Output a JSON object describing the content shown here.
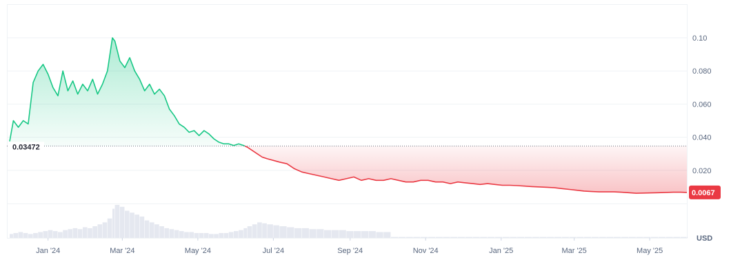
{
  "chart_data": {
    "type": "area",
    "unit_label": "USD",
    "ylim": [
      0,
      0.11
    ],
    "y_ticks": [
      "0.020",
      "0.040",
      "0.060",
      "0.080",
      "0.10"
    ],
    "x_ticks": [
      "Jan '24",
      "Mar '24",
      "May '24",
      "Jul '24",
      "Sep '24",
      "Nov '24",
      "Jan '25",
      "Mar '25",
      "May '25"
    ],
    "reference_value": 0.03472,
    "reference_label": "0.03472",
    "current_value": 0.0067,
    "current_label": "0.0067",
    "colors": {
      "up": "#16c784",
      "down": "#ea3943"
    },
    "series": [
      {
        "x": [
          "2023-12-01",
          "2023-12-04",
          "2023-12-08",
          "2023-12-12",
          "2023-12-16",
          "2023-12-20",
          "2023-12-24",
          "2023-12-28",
          "2024-01-01",
          "2024-01-05",
          "2024-01-09",
          "2024-01-13",
          "2024-01-17",
          "2024-01-21",
          "2024-01-25",
          "2024-01-29",
          "2024-02-02",
          "2024-02-06",
          "2024-02-10",
          "2024-02-14",
          "2024-02-18",
          "2024-02-22",
          "2024-02-24",
          "2024-02-28",
          "2024-03-03",
          "2024-03-07",
          "2024-03-11",
          "2024-03-15",
          "2024-03-19",
          "2024-03-23",
          "2024-03-27",
          "2024-03-31",
          "2024-04-04",
          "2024-04-08",
          "2024-04-12",
          "2024-04-16",
          "2024-04-20",
          "2024-04-24",
          "2024-04-28",
          "2024-05-02",
          "2024-05-06",
          "2024-05-10",
          "2024-05-14",
          "2024-05-18",
          "2024-05-22",
          "2024-05-26",
          "2024-05-30",
          "2024-06-03",
          "2024-06-07",
          "2024-06-10",
          "2024-06-14",
          "2024-06-18",
          "2024-06-22",
          "2024-06-26",
          "2024-07-01",
          "2024-07-06",
          "2024-07-12",
          "2024-07-18",
          "2024-07-24",
          "2024-07-30",
          "2024-08-05",
          "2024-08-11",
          "2024-08-17",
          "2024-08-23",
          "2024-08-29",
          "2024-09-04",
          "2024-09-10",
          "2024-09-16",
          "2024-09-22",
          "2024-09-28",
          "2024-10-04",
          "2024-10-10",
          "2024-10-16",
          "2024-10-22",
          "2024-10-28",
          "2024-11-03",
          "2024-11-09",
          "2024-11-15",
          "2024-11-21",
          "2024-11-27",
          "2024-12-03",
          "2024-12-09",
          "2024-12-15",
          "2024-12-21",
          "2024-12-27",
          "2025-01-02",
          "2025-01-08",
          "2025-01-14",
          "2025-01-20",
          "2025-01-26",
          "2025-02-01",
          "2025-02-07",
          "2025-02-13",
          "2025-02-19",
          "2025-02-25",
          "2025-03-03",
          "2025-03-09",
          "2025-03-15",
          "2025-03-21",
          "2025-03-27",
          "2025-04-02",
          "2025-04-08",
          "2025-04-14",
          "2025-04-20",
          "2025-04-26",
          "2025-05-02",
          "2025-05-08",
          "2025-05-14",
          "2025-05-20",
          "2025-05-26",
          "2025-05-31"
        ],
        "y": [
          0.0375,
          0.05,
          0.046,
          0.05,
          0.048,
          0.073,
          0.08,
          0.084,
          0.078,
          0.07,
          0.065,
          0.08,
          0.068,
          0.074,
          0.066,
          0.072,
          0.068,
          0.075,
          0.066,
          0.072,
          0.08,
          0.1,
          0.098,
          0.086,
          0.082,
          0.088,
          0.08,
          0.075,
          0.068,
          0.072,
          0.066,
          0.069,
          0.065,
          0.057,
          0.053,
          0.048,
          0.046,
          0.043,
          0.044,
          0.041,
          0.044,
          0.042,
          0.039,
          0.037,
          0.036,
          0.036,
          0.035,
          0.036,
          0.035,
          0.034,
          0.032,
          0.03,
          0.028,
          0.027,
          0.026,
          0.025,
          0.024,
          0.021,
          0.019,
          0.018,
          0.017,
          0.016,
          0.015,
          0.014,
          0.015,
          0.016,
          0.014,
          0.015,
          0.014,
          0.014,
          0.015,
          0.014,
          0.013,
          0.013,
          0.014,
          0.014,
          0.013,
          0.013,
          0.012,
          0.013,
          0.0125,
          0.012,
          0.0115,
          0.012,
          0.0115,
          0.011,
          0.011,
          0.0108,
          0.0105,
          0.0102,
          0.01,
          0.0098,
          0.0095,
          0.009,
          0.0085,
          0.008,
          0.0075,
          0.0072,
          0.007,
          0.007,
          0.007,
          0.0068,
          0.0065,
          0.0062,
          0.0063,
          0.0064,
          0.0065,
          0.0067,
          0.0068,
          0.0068,
          0.0067
        ]
      }
    ],
    "volume": [
      4,
      5,
      6,
      5,
      4,
      5,
      6,
      7,
      8,
      7,
      6,
      8,
      9,
      10,
      9,
      11,
      10,
      12,
      14,
      16,
      20,
      30,
      34,
      32,
      28,
      26,
      24,
      22,
      18,
      16,
      14,
      12,
      10,
      9,
      8,
      7,
      6,
      6,
      5,
      5,
      5,
      4,
      4,
      5,
      5,
      6,
      7,
      8,
      10,
      12,
      14,
      16,
      15,
      14,
      13,
      12,
      11,
      10,
      10,
      9,
      9,
      8,
      8,
      8,
      7,
      7,
      7,
      7,
      6,
      6,
      1,
      1,
      1,
      1,
      1,
      1,
      1,
      1,
      1,
      1,
      1,
      1,
      1,
      1,
      1,
      1,
      1,
      1,
      1,
      1,
      1,
      1,
      1,
      1,
      1,
      1,
      1,
      1,
      1,
      1,
      1,
      1,
      1,
      1,
      1,
      1,
      1,
      1,
      1,
      1,
      1
    ]
  }
}
